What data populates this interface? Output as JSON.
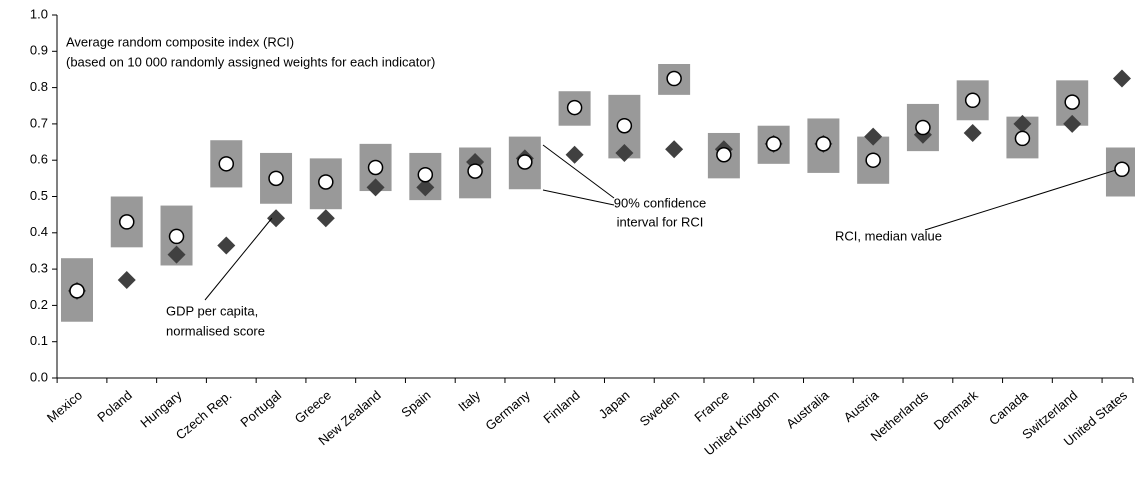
{
  "chart_data": {
    "type": "interval-dot",
    "annotations": {
      "legend_note": [
        "Average random composite index (RCI)",
        "(based on 10 000 randomly assigned weights for each indicator)"
      ],
      "interval_note": [
        "90% confidence",
        "interval for RCI"
      ],
      "median_note": [
        "RCI, median value"
      ],
      "gdp_note": [
        "GDP per capita,",
        "normalised score"
      ]
    },
    "categories": [
      "Mexico",
      "Poland",
      "Hungary",
      "Czech Rep.",
      "Portugal",
      "Greece",
      "New Zealand",
      "Spain",
      "Italy",
      "Germany",
      "Finland",
      "Japan",
      "Sweden",
      "France",
      "United Kingdom",
      "Australia",
      "Austria",
      "Netherlands",
      "Denmark",
      "Canada",
      "Switzerland",
      "United States"
    ],
    "ci_low": [
      0.155,
      0.36,
      0.31,
      0.525,
      0.48,
      0.465,
      0.515,
      0.49,
      0.495,
      0.52,
      0.695,
      0.605,
      0.78,
      0.55,
      0.59,
      0.565,
      0.535,
      0.625,
      0.71,
      0.605,
      0.695,
      0.5
    ],
    "ci_high": [
      0.33,
      0.5,
      0.475,
      0.655,
      0.62,
      0.605,
      0.645,
      0.62,
      0.635,
      0.665,
      0.79,
      0.78,
      0.865,
      0.675,
      0.695,
      0.715,
      0.665,
      0.755,
      0.82,
      0.72,
      0.82,
      0.635
    ],
    "median": [
      0.24,
      0.43,
      0.39,
      0.59,
      0.55,
      0.54,
      0.58,
      0.56,
      0.57,
      0.595,
      0.745,
      0.695,
      0.825,
      0.615,
      0.645,
      0.645,
      0.6,
      0.69,
      0.765,
      0.66,
      0.76,
      0.575
    ],
    "gdp": [
      0.24,
      0.27,
      0.34,
      0.365,
      0.44,
      0.44,
      0.525,
      0.525,
      0.595,
      0.605,
      0.615,
      0.62,
      0.63,
      0.63,
      0.645,
      0.645,
      0.665,
      0.67,
      0.675,
      0.7,
      0.7,
      0.825
    ],
    "interval_color": "#999999",
    "gdp_color": "#404040",
    "median_color": "#ffffff",
    "ylim": [
      0,
      1
    ],
    "yticks": [
      {
        "value": 0,
        "label": "0.0"
      },
      0.1,
      0.2,
      0.3,
      0.4,
      0.5,
      0.6,
      0.7,
      0.8,
      0.9,
      {
        "value": 1,
        "label": "1.0"
      }
    ]
  }
}
